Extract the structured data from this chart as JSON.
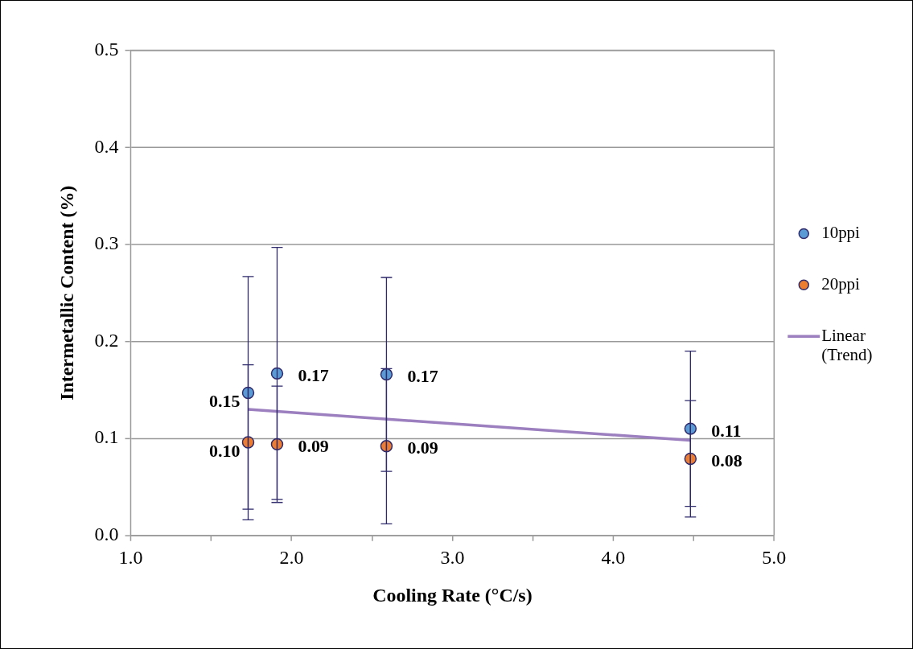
{
  "chart_data": {
    "type": "scatter",
    "xlabel": "Cooling Rate (°C/s)",
    "ylabel": "Intermetallic Content (%)",
    "x": [
      1.73,
      1.91,
      2.59,
      4.48
    ],
    "series": [
      {
        "name": "10ppi",
        "color": "#5b9bd5",
        "values": [
          0.147,
          0.167,
          0.166,
          0.11
        ],
        "errors": [
          0.12,
          0.13,
          0.1,
          0.08
        ],
        "value_labels": [
          "0.15",
          "0.17",
          "0.17",
          "0.11"
        ]
      },
      {
        "name": "20ppi",
        "color": "#ed7d31",
        "values": [
          0.096,
          0.094,
          0.092,
          0.079
        ],
        "errors": [
          0.08,
          0.06,
          0.08,
          0.06
        ],
        "value_labels": [
          "0.10",
          "0.09",
          "0.09",
          "0.08"
        ]
      },
      {
        "name": "Linear (Trend)",
        "type": "line",
        "marker": "none",
        "color": "#9b7fbf",
        "x": [
          1.73,
          4.48
        ],
        "values": [
          0.13,
          0.098
        ]
      }
    ],
    "xlim": [
      1,
      5
    ],
    "ylim": [
      0,
      0.5
    ],
    "xticks": [
      {
        "value": 1,
        "label": "1.0"
      },
      {
        "value": 1.5,
        "label": null
      },
      {
        "value": 2,
        "label": "2.0"
      },
      {
        "value": 2.5,
        "label": null
      },
      {
        "value": 3,
        "label": "3.0"
      },
      {
        "value": 3.5,
        "label": null
      },
      {
        "value": 4,
        "label": "4.0"
      },
      {
        "value": 4.5,
        "label": null
      },
      {
        "value": 5,
        "label": "5.0"
      }
    ],
    "yticks": [
      {
        "value": 0,
        "label": "0.0"
      },
      {
        "value": 0.1,
        "label": "0.1"
      },
      {
        "value": 0.2,
        "label": "0.2"
      },
      {
        "value": 0.3,
        "label": "0.3"
      },
      {
        "value": 0.4,
        "label": "0.4"
      },
      {
        "value": 0.5,
        "label": "0.5"
      }
    ],
    "grid": "y",
    "legend": "right",
    "marker": "circle"
  }
}
